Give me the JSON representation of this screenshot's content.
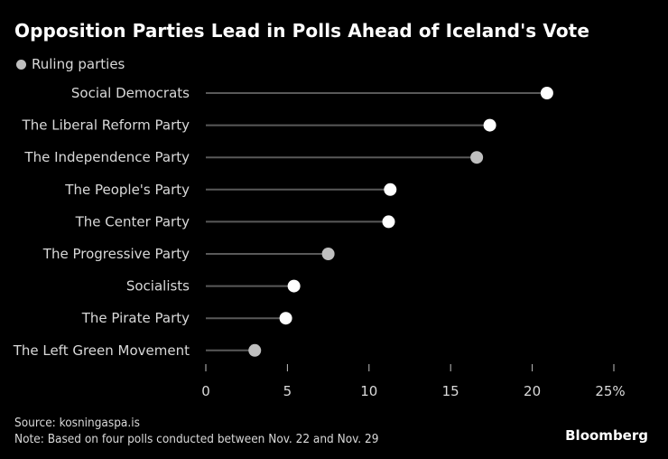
{
  "title": "Opposition Parties Lead in Polls Ahead of Iceland's Vote",
  "legend": {
    "label": "Ruling parties",
    "color": "#bfbfbf"
  },
  "colors": {
    "background": "#000000",
    "opposition": "#ffffff",
    "ruling": "#bfbfbf",
    "stem": "#595959",
    "label": "#d9d9d9"
  },
  "footer": {
    "source": "Source: kosningaspa.is",
    "note": "Note: Based on four polls conducted between Nov. 22 and Nov. 29"
  },
  "brand": "Bloomberg",
  "chart_data": {
    "type": "lollipop",
    "title": "Opposition Parties Lead in Polls Ahead of Iceland's Vote",
    "xlabel": "",
    "ylabel": "",
    "xlim": [
      0,
      25
    ],
    "x_ticks": [
      0,
      5,
      10,
      15,
      20,
      25
    ],
    "x_tick_labels": [
      "0",
      "5",
      "10",
      "15",
      "20",
      "25%"
    ],
    "grid": false,
    "legend_position": "top-left",
    "legend": [
      "Ruling parties"
    ],
    "categories": [
      "Social Democrats",
      "The Liberal Reform Party",
      "The Independence Party",
      "The People's Party",
      "The Center Party",
      "The Progressive Party",
      "Socialists",
      "The Pirate Party",
      "The Left Green Movement"
    ],
    "values": [
      20.9,
      17.4,
      16.6,
      11.3,
      11.2,
      7.5,
      5.4,
      4.9,
      3.0
    ],
    "ruling": [
      false,
      false,
      true,
      false,
      false,
      true,
      false,
      false,
      true
    ],
    "unit": "%"
  }
}
